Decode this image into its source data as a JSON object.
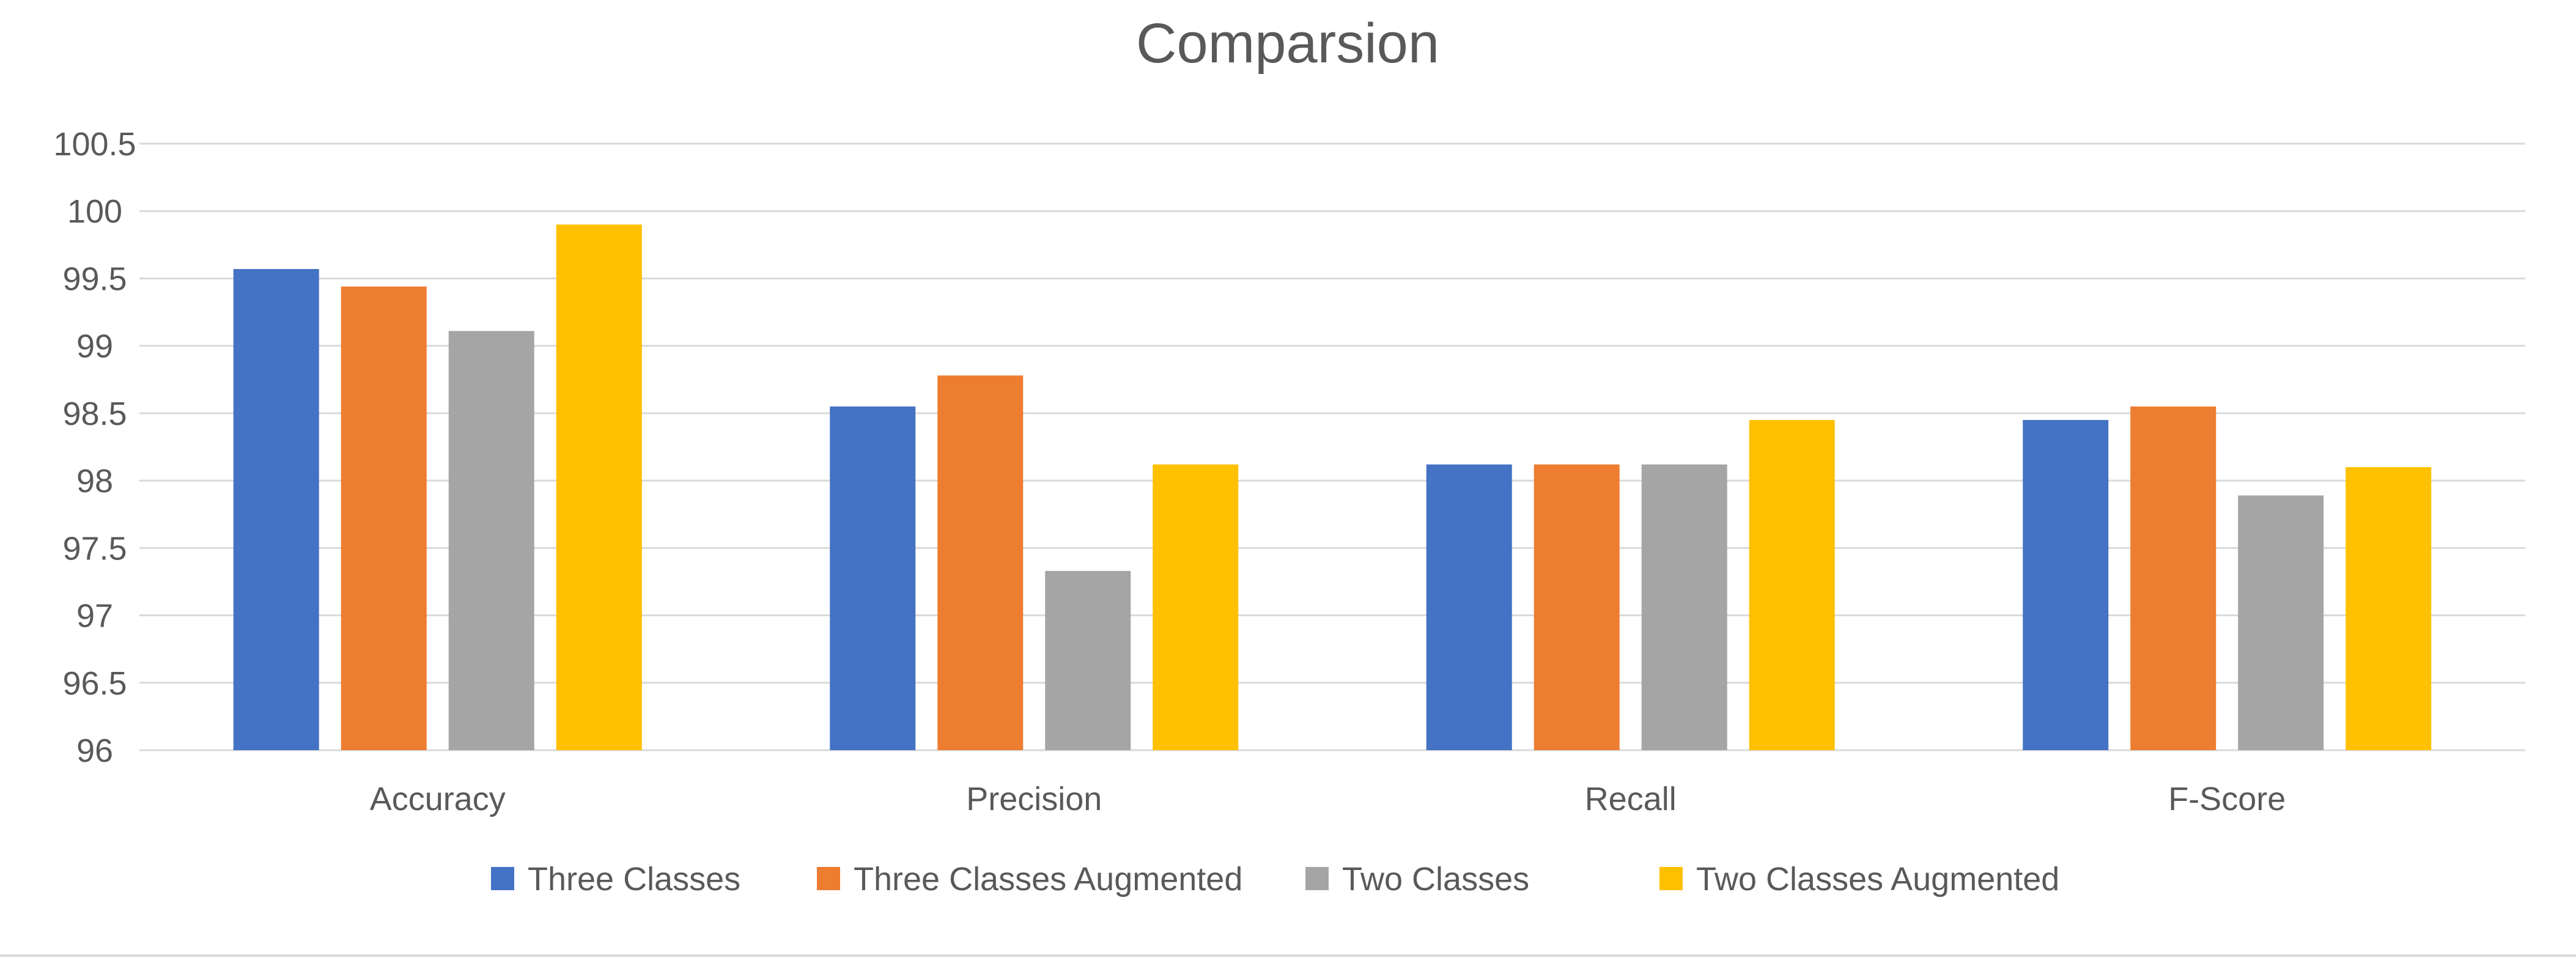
{
  "chart_data": {
    "type": "bar",
    "title": "Comparsion",
    "xlabel": "",
    "ylabel": "",
    "categories": [
      "Accuracy",
      "Precision",
      "Recall",
      "F-Score"
    ],
    "series": [
      {
        "name": "Three Classes",
        "color": "#4472C4",
        "values": [
          99.57,
          98.55,
          98.12,
          98.45
        ]
      },
      {
        "name": "Three Classes Augmented",
        "color": "#ED7D31",
        "values": [
          99.44,
          98.78,
          98.12,
          98.55
        ]
      },
      {
        "name": "Two Classes",
        "color": "#A5A5A5",
        "values": [
          99.11,
          97.33,
          98.12,
          97.89
        ]
      },
      {
        "name": "Two Classes Augmented",
        "color": "#FFC000",
        "values": [
          99.9,
          98.12,
          98.45,
          98.1
        ]
      }
    ],
    "ylim": [
      96,
      100.5
    ],
    "yticks": [
      "96",
      "96.5",
      "97",
      "97.5",
      "98",
      "98.5",
      "99",
      "99.5",
      "100",
      "100.5"
    ],
    "grid": true,
    "legend_position": "bottom"
  }
}
